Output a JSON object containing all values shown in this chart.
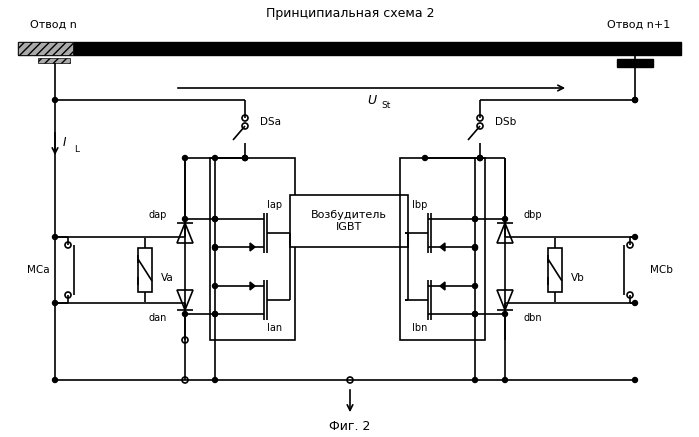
{
  "title": "Принципиальная схема 2",
  "label_n": "Отвод n",
  "label_n1": "Отвод n+1",
  "label_USt": "U",
  "label_USt_sub": "St",
  "label_IL": "I",
  "label_IL_sub": "L",
  "label_DSa": "DSa",
  "label_DSb": "DSb",
  "label_MCa": "MCa",
  "label_MCb": "MCb",
  "label_Va": "Va",
  "label_Vb": "Vb",
  "label_dap": "dap",
  "label_dan": "dan",
  "label_Iap": "Iap",
  "label_Ian": "Ian",
  "label_Ibp": "Ibp",
  "label_Ibn": "Ibn",
  "label_dbp": "dbp",
  "label_dbn": "dbn",
  "label_igbt": "Возбудитель\nIGBT",
  "label_fig": "Фиг. 2",
  "bg_color": "#ffffff",
  "line_color": "#000000"
}
